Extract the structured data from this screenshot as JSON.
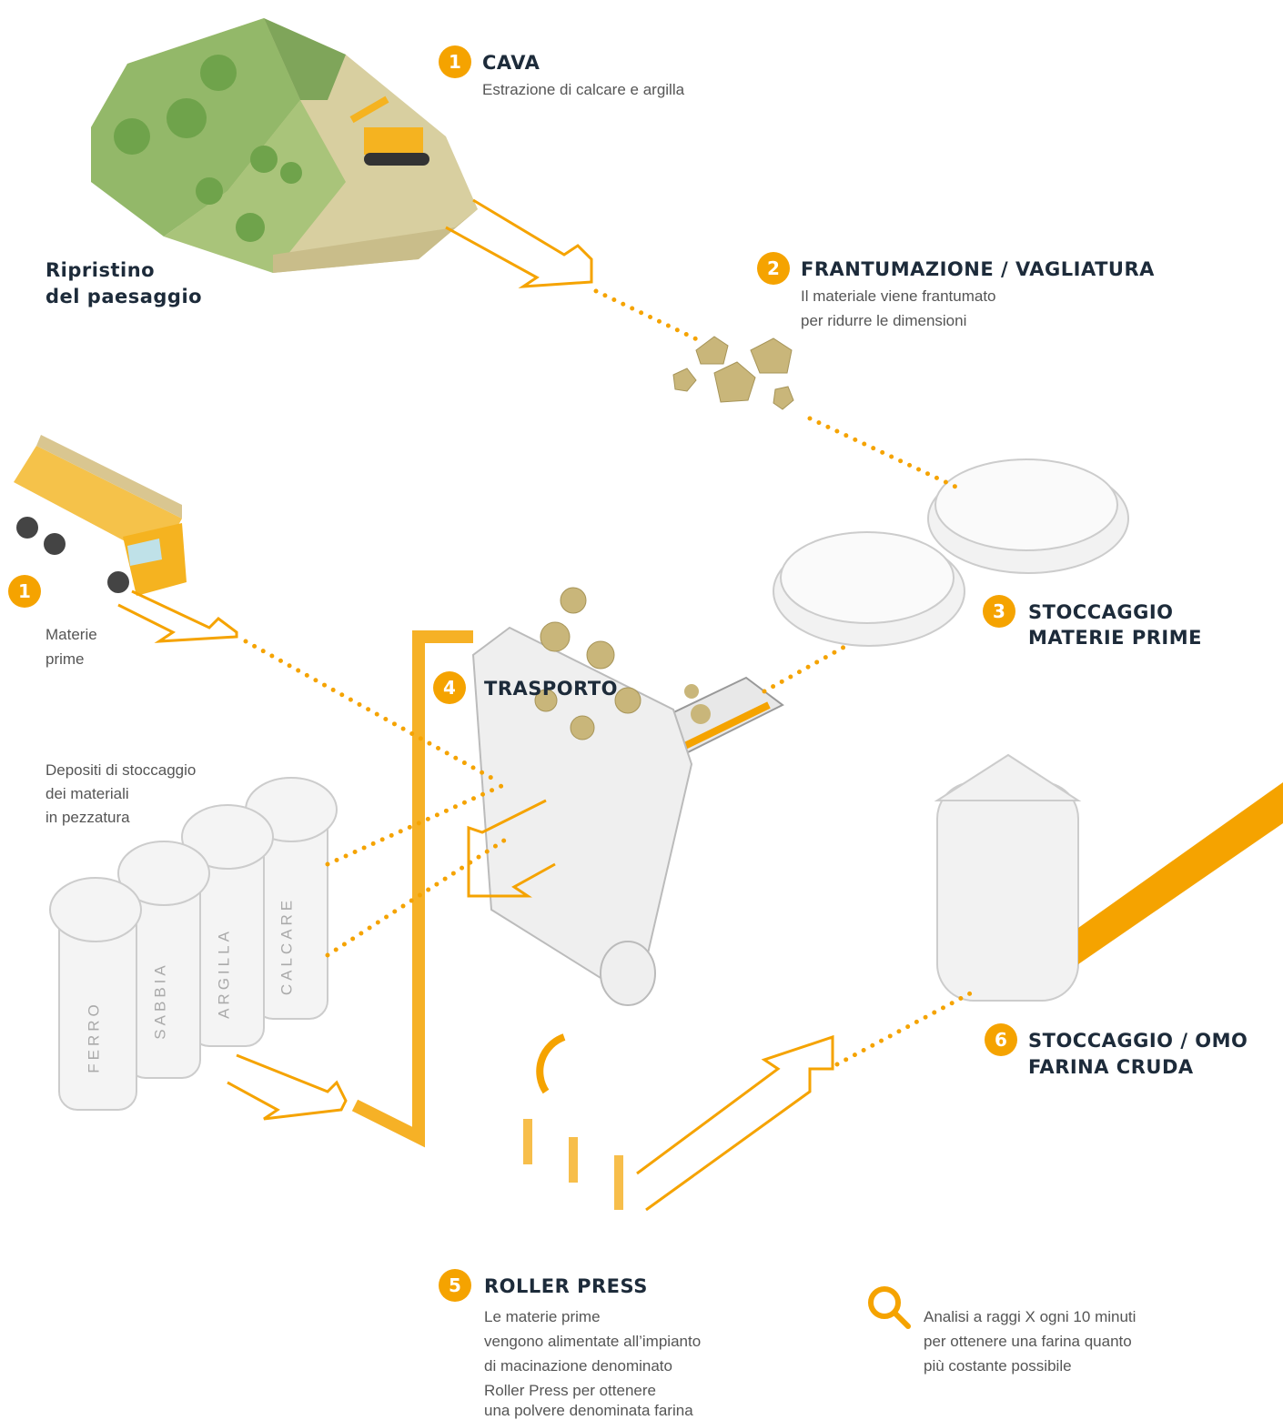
{
  "steps": [
    {
      "number": "1",
      "title": "CAVA",
      "description": [
        "Estrazione di calcare e argilla"
      ]
    },
    {
      "number": "2",
      "title": "FRANTUMAZIONE / VAGLIATURA",
      "description": [
        "Il materiale viene frantumato",
        "per ridurre le dimensioni"
      ]
    },
    {
      "number": "3",
      "title": [
        "STOCCAGGIO",
        "MATERIE PRIME"
      ]
    },
    {
      "number": "4",
      "title": "TRASPORTO"
    },
    {
      "number": "5",
      "title": "ROLLER PRESS",
      "description": [
        "Le materie prime",
        "vengono alimentate all’impianto",
        "di macinazione denominato",
        "Roller Press per ottenere",
        "una polvere denominata farina"
      ]
    },
    {
      "number": "6",
      "title": [
        "STOCCAGGIO / OMO",
        "FARINA CRUDA"
      ]
    }
  ],
  "raw_materials": {
    "number": "1",
    "label": [
      "Materie",
      "prime"
    ]
  },
  "landscape": [
    "Ripristino",
    "del paesaggio"
  ],
  "storage": {
    "label": [
      "Depositi di stoccaggio",
      "dei materiali",
      "in pezzatura"
    ],
    "silos": [
      "FERRO",
      "SABBIA",
      "ARGILLA",
      "CALCARE"
    ]
  },
  "analysis": [
    "Analisi a raggi X ogni 10 minuti",
    "per ottenere una farina quanto",
    "più costante possibile"
  ]
}
